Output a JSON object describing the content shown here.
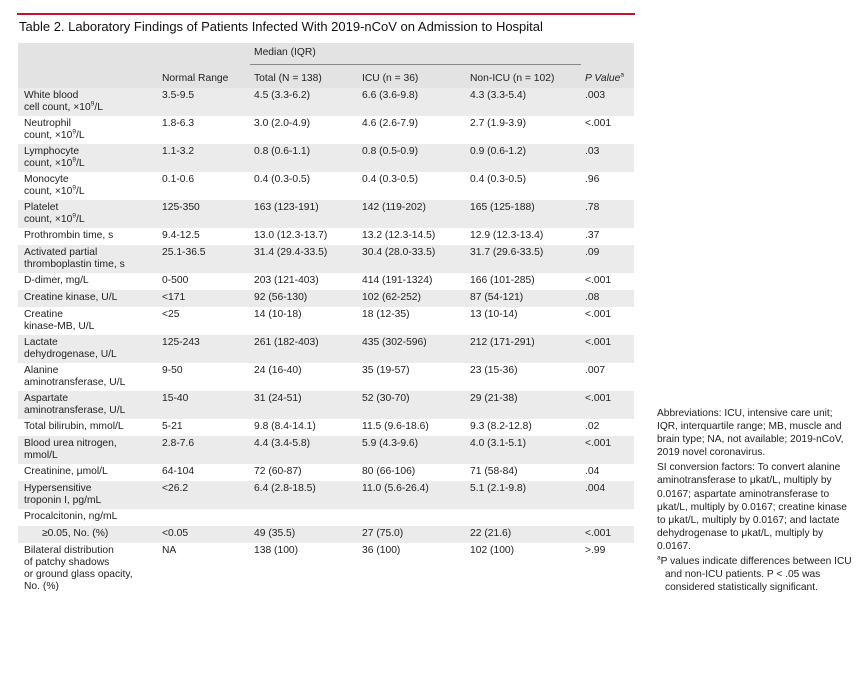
{
  "title": "Table 2. Laboratory Findings of Patients Infected With 2019-nCoV on Admission to Hospital",
  "header": {
    "median": "Median (IQR)",
    "normal_range": "Normal Range",
    "total": "Total (N = 138)",
    "icu": "ICU (n = 36)",
    "nonicu": "Non-ICU (n = 102)",
    "p": "P Value",
    "p_mark": "a"
  },
  "rows": [
    {
      "l1": "White blood",
      "l2": "cell count, ×10",
      "sup": "9",
      "l2b": "/L",
      "nr": "3.5-9.5",
      "total": "4.5 (3.3-6.2)",
      "icu": "6.6 (3.6-9.8)",
      "nonicu": "4.3 (3.3-5.4)",
      "p": ".003"
    },
    {
      "l1": "Neutrophil",
      "l2": "count, ×10",
      "sup": "9",
      "l2b": "/L",
      "nr": "1.8-6.3",
      "total": "3.0 (2.0-4.9)",
      "icu": "4.6 (2.6-7.9)",
      "nonicu": "2.7 (1.9-3.9)",
      "p": "<.001"
    },
    {
      "l1": "Lymphocyte",
      "l2": "count, ×10",
      "sup": "9",
      "l2b": "/L",
      "nr": "1.1-3.2",
      "total": "0.8 (0.6-1.1)",
      "icu": "0.8 (0.5-0.9)",
      "nonicu": "0.9 (0.6-1.2)",
      "p": ".03"
    },
    {
      "l1": "Monocyte",
      "l2": "count, ×10",
      "sup": "9",
      "l2b": "/L",
      "nr": "0.1-0.6",
      "total": "0.4 (0.3-0.5)",
      "icu": "0.4 (0.3-0.5)",
      "nonicu": "0.4 (0.3-0.5)",
      "p": ".96"
    },
    {
      "l1": "Platelet",
      "l2": "count, ×10",
      "sup": "9",
      "l2b": "/L",
      "nr": "125-350",
      "total": "163 (123-191)",
      "icu": "142 (119-202)",
      "nonicu": "165 (125-188)",
      "p": ".78"
    },
    {
      "l1": "Prothrombin time, s",
      "nr": "9.4-12.5",
      "total": "13.0 (12.3-13.7)",
      "icu": "13.2 (12.3-14.5)",
      "nonicu": "12.9 (12.3-13.4)",
      "p": ".37"
    },
    {
      "l1": "Activated partial",
      "l2": "thromboplastin time, s",
      "nr": "25.1-36.5",
      "total": "31.4 (29.4-33.5)",
      "icu": "30.4 (28.0-33.5)",
      "nonicu": "31.7 (29.6-33.5)",
      "p": ".09"
    },
    {
      "l1": "D-dimer, mg/L",
      "nr": "0-500",
      "total": "203 (121-403)",
      "icu": "414 (191-1324)",
      "nonicu": "166 (101-285)",
      "p": "<.001"
    },
    {
      "l1": "Creatine kinase, U/L",
      "nr": "<171",
      "total": "92 (56-130)",
      "icu": "102 (62-252)",
      "nonicu": "87 (54-121)",
      "p": ".08"
    },
    {
      "l1": "Creatine",
      "l2": "kinase-MB, U/L",
      "nr": "<25",
      "total": "14 (10-18)",
      "icu": "18 (12-35)",
      "nonicu": "13 (10-14)",
      "p": "<.001"
    },
    {
      "l1": "Lactate",
      "l2": "dehydrogenase, U/L",
      "nr": "125-243",
      "total": "261 (182-403)",
      "icu": "435 (302-596)",
      "nonicu": "212 (171-291)",
      "p": "<.001"
    },
    {
      "l1": "Alanine",
      "l2": "aminotransferase, U/L",
      "nr": "9-50",
      "total": "24 (16-40)",
      "icu": "35 (19-57)",
      "nonicu": "23 (15-36)",
      "p": ".007"
    },
    {
      "l1": "Aspartate",
      "l2": "aminotransferase, U/L",
      "nr": "15-40",
      "total": "31 (24-51)",
      "icu": "52 (30-70)",
      "nonicu": "29 (21-38)",
      "p": "<.001"
    },
    {
      "l1": "Total bilirubin, mmol/L",
      "nr": "5-21",
      "total": "9.8 (8.4-14.1)",
      "icu": "11.5 (9.6-18.6)",
      "nonicu": "9.3 (8.2-12.8)",
      "p": ".02"
    },
    {
      "l1": "Blood urea nitrogen,",
      "l2": "mmol/L",
      "nr": "2.8-7.6",
      "total": "4.4 (3.4-5.8)",
      "icu": "5.9 (4.3-9.6)",
      "nonicu": "4.0 (3.1-5.1)",
      "p": "<.001"
    },
    {
      "l1": "Creatinine, μmol/L",
      "nr": "64-104",
      "total": "72 (60-87)",
      "icu": "80 (66-106)",
      "nonicu": "71 (58-84)",
      "p": ".04"
    },
    {
      "l1": "Hypersensitive",
      "l2": "troponin I, pg/mL",
      "nr": "<26.2",
      "total": "6.4 (2.8-18.5)",
      "icu": "11.0 (5.6-26.4)",
      "nonicu": "5.1 (2.1-9.8)",
      "p": ".004"
    },
    {
      "l1": "Procalcitonin, ng/mL",
      "nr": "",
      "total": "",
      "icu": "",
      "nonicu": "",
      "p": ""
    },
    {
      "l1": "≥0.05, No. (%)",
      "indent": true,
      "nr": "<0.05",
      "total": "49 (35.5)",
      "icu": "27 (75.0)",
      "nonicu": "22 (21.6)",
      "p": "<.001"
    },
    {
      "l1": "Bilateral distribution",
      "l2": "of patchy shadows",
      "l3": "or ground glass opacity,",
      "l4": "No. (%)",
      "nr": "NA",
      "total": "138 (100)",
      "icu": "36 (100)",
      "nonicu": "102 (100)",
      "p": ">.99"
    }
  ],
  "side": {
    "abbrev": "Abbreviations: ICU, intensive care unit; IQR, interquartile range; MB, muscle and brain type; NA, not available; 2019-nCoV, 2019 novel coronavirus.",
    "si": "SI conversion factors: To convert alanine aminotransferase to μkat/L, multiply by 0.0167; aspartate aminotransferase to μkat/L, multiply by 0.0167; creatine kinase to μkat/L, multiply by 0.0167; and lactate dehydrogenase to μkat/L, multiply by 0.0167.",
    "note_mark": "a",
    "note": "P values indicate differences between ICU and non-ICU patients. P < .05 was considered statistically significant."
  },
  "colors": {
    "rule": "#c8102e",
    "band": "#ebebeb",
    "header_band": "#e3e3e3"
  }
}
